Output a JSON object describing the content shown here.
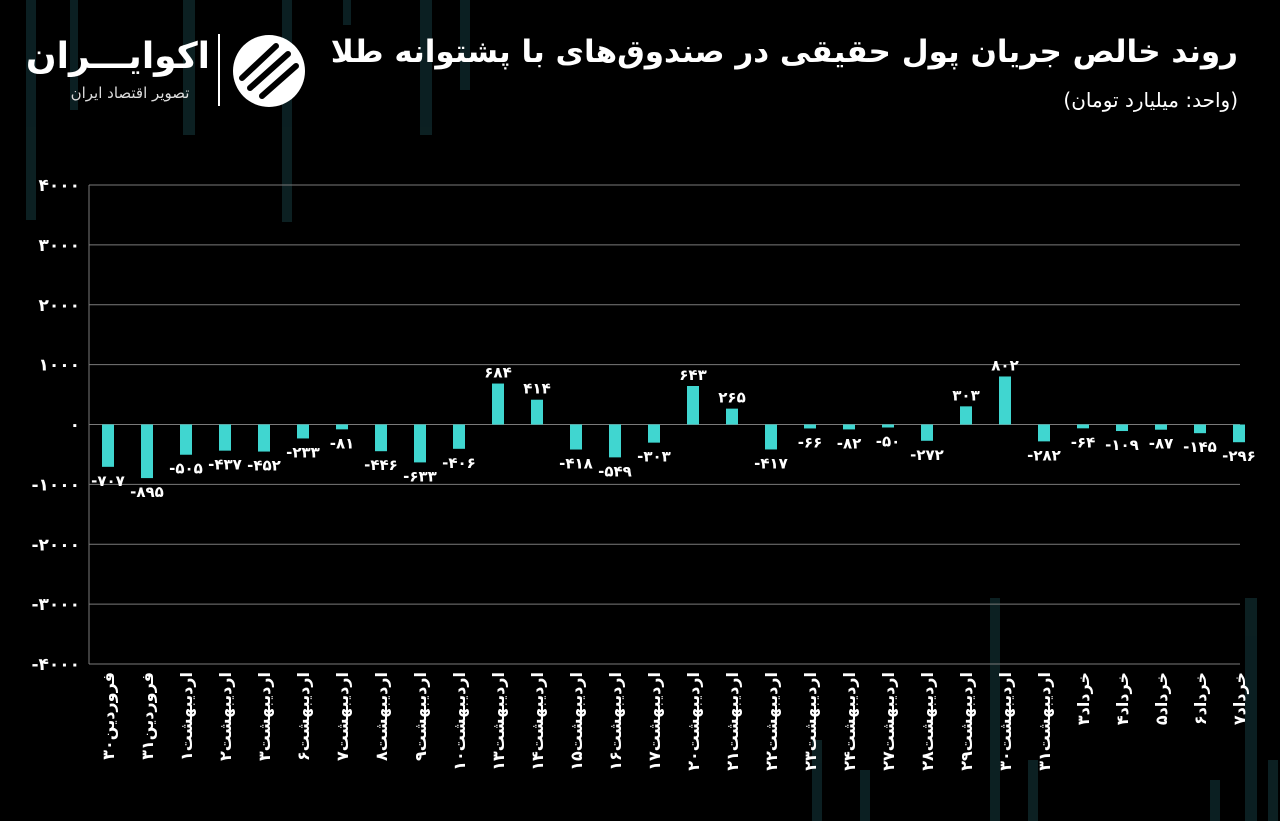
{
  "header": {
    "title": "روند خالص جریان پول حقیقی در صندوق‌های با پشتوانه طلا",
    "subtitle": "(واحد: میلیارد تومان)"
  },
  "brand": {
    "name": "اکوایـــران",
    "tagline": "تصویر اقتصاد ایران",
    "icon": "ecoiran-logo-icon"
  },
  "colors": {
    "bar": "#40d6d0",
    "background": "#000000",
    "grid": "#7a7a7a"
  },
  "chart_data": {
    "type": "bar",
    "title": "روند خالص جریان پول حقیقی در صندوق‌های با پشتوانه طلا",
    "subtitle": "(واحد: میلیارد تومان)",
    "ylim": [
      -4000,
      4000
    ],
    "yticks": [
      4000,
      3000,
      2000,
      1000,
      0,
      -1000,
      -2000,
      -3000,
      -4000
    ],
    "ytick_labels": [
      "۴۰۰۰",
      "۳۰۰۰",
      "۲۰۰۰",
      "۱۰۰۰",
      "۰",
      "-۱۰۰۰",
      "-۲۰۰۰",
      "-۳۰۰۰",
      "-۴۰۰۰"
    ],
    "grid": true,
    "categories": [
      "فروردین۳۰",
      "فروردین۳۱",
      "اردیبهشت۱",
      "اردیبهشت۲",
      "اردیبهشت۳",
      "اردیبهشت۶",
      "اردیبهشت۷",
      "اردیبهشت۸",
      "اردیبهشت۹",
      "اردیبهشت۱۰",
      "اردیبهشت۱۳",
      "اردیبهشت۱۴",
      "اردیبهشت۱۵",
      "اردیبهشت۱۶",
      "اردیبهشت۱۷",
      "اردیبهشت۲۰",
      "اردیبهشت۲۱",
      "اردیبهشت۲۲",
      "اردیبهشت۲۳",
      "اردیبهشت۲۴",
      "اردیبهشت۲۷",
      "اردیبهشت۲۸",
      "اردیبهشت۲۹",
      "اردیبهشت۳۰",
      "اردیبهشت۳۱",
      "خرداد۳",
      "خرداد۴",
      "خرداد۵",
      "خرداد۶",
      "خرداد۷"
    ],
    "values": [
      -707,
      -895,
      -505,
      -437,
      -452,
      -233,
      -81,
      -446,
      -633,
      -406,
      684,
      414,
      -418,
      -549,
      -303,
      643,
      265,
      -417,
      -66,
      -82,
      -50,
      -272,
      303,
      802,
      -282,
      -64,
      -109,
      -87,
      -145,
      -296
    ],
    "value_labels": [
      "-۷۰۷",
      "-۸۹۵",
      "-۵۰۵",
      "-۴۳۷",
      "-۴۵۲",
      "-۲۳۳",
      "-۸۱",
      "-۴۴۶",
      "-۶۳۳",
      "-۴۰۶",
      "۶۸۴",
      "۴۱۴",
      "-۴۱۸",
      "-۵۴۹",
      "-۳۰۳",
      "۶۴۳",
      "۲۶۵",
      "-۴۱۷",
      "-۶۶",
      "-۸۲",
      "-۵۰",
      "-۲۷۲",
      "۳۰۳",
      "۸۰۲",
      "-۲۸۲",
      "-۶۴",
      "-۱۰۹",
      "-۸۷",
      "-۱۴۵",
      "-۲۹۶"
    ]
  }
}
